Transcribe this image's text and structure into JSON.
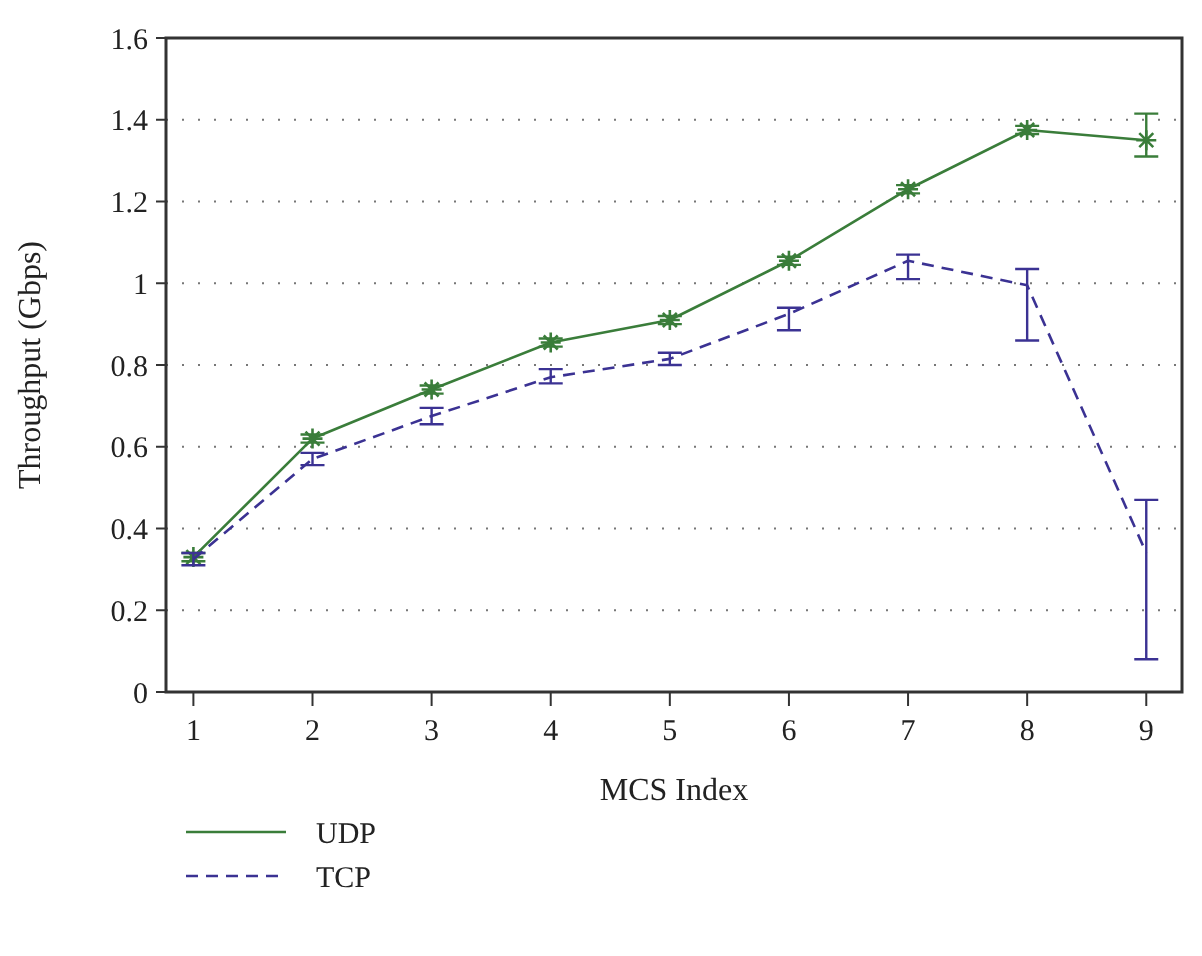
{
  "chart_data": {
    "type": "line",
    "xlabel": "MCS Index",
    "ylabel": "Throughput (Gbps)",
    "x": [
      1,
      2,
      3,
      4,
      5,
      6,
      7,
      8,
      9
    ],
    "xlim": [
      0.77,
      9.3
    ],
    "xticks": [
      1,
      2,
      3,
      4,
      5,
      6,
      7,
      8,
      9
    ],
    "ylim": [
      0,
      1.6
    ],
    "yticks": [
      0,
      0.2,
      0.4,
      0.6,
      0.8,
      1,
      1.2,
      1.4,
      1.6
    ],
    "grid": "y",
    "legend": "bottom left",
    "series": [
      {
        "name": "UDP",
        "color": "#3a7d3a",
        "line_style": "solid",
        "marker": "cross",
        "values": [
          0.33,
          0.62,
          0.74,
          0.855,
          0.91,
          1.055,
          1.23,
          1.375,
          1.35
        ],
        "errors": [
          0.01,
          0.01,
          0.01,
          0.01,
          0.01,
          0.01,
          0.01,
          0.01,
          [
            1.31,
            1.415
          ]
        ]
      },
      {
        "name": "TCP",
        "color": "#3b3293",
        "line_style": "dashed",
        "marker": "none",
        "values": [
          0.325,
          0.57,
          0.675,
          0.77,
          0.815,
          0.925,
          1.055,
          0.995,
          0.34
        ],
        "errors": [
          0.015,
          0.015,
          0.02,
          [
            0.755,
            0.79
          ],
          [
            0.8,
            0.83
          ],
          [
            0.885,
            0.94
          ],
          [
            1.01,
            1.07
          ],
          [
            0.86,
            1.035
          ],
          [
            0.08,
            0.47
          ]
        ]
      }
    ]
  }
}
